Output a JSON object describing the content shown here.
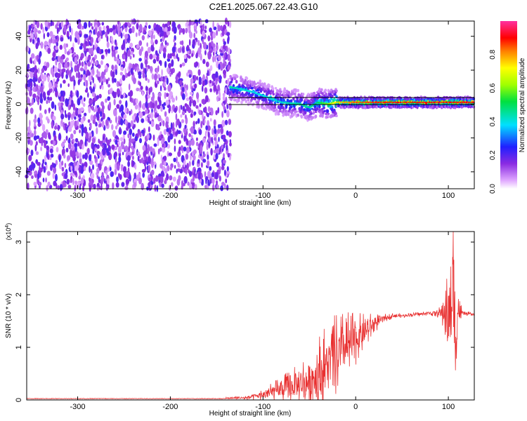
{
  "title": "C2E1.2025.067.22.43.G10",
  "chart_data": [
    {
      "type": "heatmap",
      "xlabel": "Height of straight line (km)",
      "ylabel": "Frequency (Hz)",
      "xlim": [
        -355,
        128
      ],
      "ylim": [
        -50,
        49
      ],
      "xticks": [
        -300,
        -200,
        -100,
        0,
        100
      ],
      "xtick_labels": [
        "-300",
        "-200",
        "-100",
        "0",
        "100"
      ],
      "yticks": [
        -40,
        -20,
        0,
        20,
        40
      ],
      "ytick_labels": [
        "-40",
        "-20",
        "0",
        "20",
        "40"
      ],
      "colorbar": {
        "label": "Normalized spectral amplitude",
        "range": [
          0,
          1
        ],
        "ticks": [
          0.0,
          0.2,
          0.4,
          0.6,
          0.8
        ],
        "tick_labels": [
          "0.0",
          "0.2",
          "0.4",
          "0.6",
          "0.8"
        ],
        "colormap": "rainbow"
      },
      "noise_region": {
        "x_range": [
          -355,
          -135
        ],
        "freq_range": [
          -50,
          49
        ],
        "amplitude": 0.15
      },
      "signal_track": [
        {
          "x": -135,
          "freq": 10,
          "amplitude": 0.45
        },
        {
          "x": -125,
          "freq": 9,
          "amplitude": 0.42
        },
        {
          "x": -110,
          "freq": 7,
          "amplitude": 0.4
        },
        {
          "x": -95,
          "freq": 4,
          "amplitude": 0.4
        },
        {
          "x": -80,
          "freq": 1,
          "amplitude": 0.42
        },
        {
          "x": -60,
          "freq": 0,
          "amplitude": 0.45
        },
        {
          "x": -50,
          "freq": -2,
          "amplitude": 0.45
        },
        {
          "x": -40,
          "freq": 1,
          "amplitude": 0.5
        },
        {
          "x": -30,
          "freq": 0,
          "amplitude": 0.6
        },
        {
          "x": -20,
          "freq": 1,
          "amplitude": 0.75
        },
        {
          "x": 0,
          "freq": 1,
          "amplitude": 0.85
        },
        {
          "x": 40,
          "freq": 1,
          "amplitude": 0.9
        },
        {
          "x": 80,
          "freq": 1,
          "amplitude": 0.9
        },
        {
          "x": 100,
          "freq": 1,
          "amplitude": 0.9
        },
        {
          "x": 128,
          "freq": 1,
          "amplitude": 0.9
        }
      ]
    },
    {
      "type": "line",
      "xlabel": "Height of straight line (km)",
      "ylabel": "SNR (10 * v/v)",
      "y_multiplier": "(x10^4)",
      "xlim": [
        -355,
        128
      ],
      "ylim": [
        0,
        3.2
      ],
      "xticks": [
        -300,
        -200,
        -100,
        0,
        100
      ],
      "xtick_labels": [
        "-300",
        "-200",
        "-100",
        "0",
        "100"
      ],
      "yticks": [
        0,
        1,
        2,
        3
      ],
      "ytick_labels": [
        "0",
        "1",
        "2",
        "3"
      ],
      "color": "#e83030",
      "series": [
        {
          "x": [
            -355,
            -300,
            -250,
            -200,
            -150,
            -120,
            -110,
            -100,
            -90,
            -80,
            -70,
            -60,
            -50,
            -40,
            -30,
            -20,
            -10,
            0,
            10,
            20,
            30,
            40,
            50,
            60,
            70,
            80,
            90,
            95,
            100,
            103,
            105,
            107,
            110,
            115,
            128
          ],
          "y": [
            0.02,
            0.02,
            0.02,
            0.02,
            0.03,
            0.04,
            0.06,
            0.1,
            0.15,
            0.2,
            0.25,
            0.3,
            0.38,
            0.5,
            0.7,
            0.85,
            1.0,
            1.15,
            1.3,
            1.45,
            1.55,
            1.6,
            1.6,
            1.62,
            1.63,
            1.65,
            1.65,
            1.66,
            1.68,
            1.5,
            2.4,
            1.2,
            1.7,
            1.65,
            1.62
          ],
          "noise": [
            0,
            0,
            0,
            0,
            0.01,
            0.04,
            0.08,
            0.12,
            0.18,
            0.25,
            0.35,
            0.45,
            0.6,
            0.75,
            0.8,
            0.8,
            0.7,
            0.5,
            0.35,
            0.2,
            0.08,
            0.05,
            0.04,
            0.04,
            0.04,
            0.04,
            0.1,
            0.4,
            0.8,
            1.2,
            1.4,
            1.2,
            0.6,
            0.05,
            0.03
          ]
        }
      ]
    }
  ]
}
